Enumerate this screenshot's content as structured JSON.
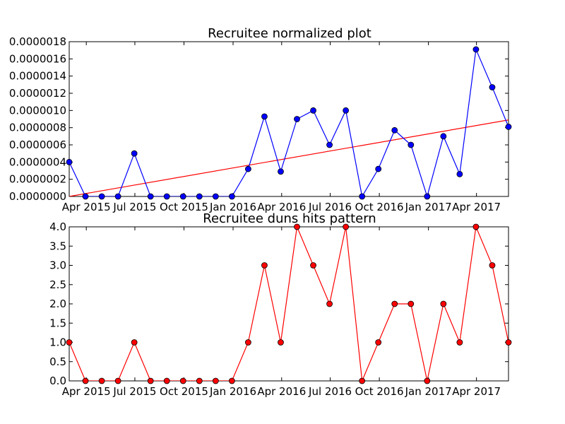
{
  "chart_data": [
    {
      "type": "line",
      "title": "Recruitee normalized plot",
      "xlabel": "",
      "ylabel": "",
      "x_tick_labels": [
        "Apr 2015",
        "Jul 2015",
        "Oct 2015",
        "Jan 2016",
        "Apr 2016",
        "Jul 2016",
        "Oct 2016",
        "Jan 2017",
        "Apr 2017"
      ],
      "y_tick_labels": [
        "0.0000000",
        "0.0000002",
        "0.0000004",
        "0.0000006",
        "0.0000008",
        "0.0000010",
        "0.0000012",
        "0.0000014",
        "0.0000016",
        "0.0000018"
      ],
      "ylim": [
        0,
        1.8e-06
      ],
      "x": [
        "2015-02",
        "2015-03",
        "2015-04",
        "2015-05",
        "2015-06",
        "2015-07",
        "2015-08",
        "2015-09",
        "2015-10",
        "2015-11",
        "2015-12",
        "2016-01",
        "2016-02",
        "2016-03",
        "2016-04",
        "2016-05",
        "2016-06",
        "2016-07",
        "2016-08",
        "2016-09",
        "2016-10",
        "2016-11",
        "2016-12",
        "2017-01",
        "2017-02",
        "2017-03",
        "2017-04",
        "2017-05"
      ],
      "series": [
        {
          "color": "#0000ff",
          "marker": "circle",
          "values": [
            4e-07,
            0,
            0,
            0,
            5e-07,
            0,
            0,
            0,
            0,
            0,
            0,
            3.2e-07,
            9.3e-07,
            2.9e-07,
            9e-07,
            1e-06,
            6e-07,
            1e-06,
            0,
            3.2e-07,
            7.7e-07,
            6e-07,
            0,
            7e-07,
            2.6e-07,
            1.71e-06,
            1.27e-06,
            8.1e-07
          ]
        }
      ],
      "trend_line": {
        "color": "#ff0000",
        "start": 0,
        "end": 8.9e-07
      },
      "grid": false
    },
    {
      "type": "line",
      "title": "Recruitee duns hits pattern",
      "xlabel": "",
      "ylabel": "",
      "x_tick_labels": [
        "Apr 2015",
        "Jul 2015",
        "Oct 2015",
        "Jan 2016",
        "Apr 2016",
        "Jul 2016",
        "Oct 2016",
        "Jan 2017",
        "Apr 2017"
      ],
      "y_tick_labels": [
        "0.0",
        "0.5",
        "1.0",
        "1.5",
        "2.0",
        "2.5",
        "3.0",
        "3.5",
        "4.0"
      ],
      "ylim": [
        0,
        4
      ],
      "x": [
        "2015-02",
        "2015-03",
        "2015-04",
        "2015-05",
        "2015-06",
        "2015-07",
        "2015-08",
        "2015-09",
        "2015-10",
        "2015-11",
        "2015-12",
        "2016-01",
        "2016-02",
        "2016-03",
        "2016-04",
        "2016-05",
        "2016-06",
        "2016-07",
        "2016-08",
        "2016-09",
        "2016-10",
        "2016-11",
        "2016-12",
        "2017-01",
        "2017-02",
        "2017-03",
        "2017-04",
        "2017-05"
      ],
      "series": [
        {
          "color": "#ff0000",
          "marker": "circle",
          "values": [
            1,
            0,
            0,
            0,
            1,
            0,
            0,
            0,
            0,
            0,
            0,
            1,
            3,
            1,
            4,
            3,
            2,
            4,
            0,
            1,
            2,
            2,
            0,
            2,
            1,
            4,
            3,
            1
          ]
        }
      ],
      "grid": false
    }
  ]
}
